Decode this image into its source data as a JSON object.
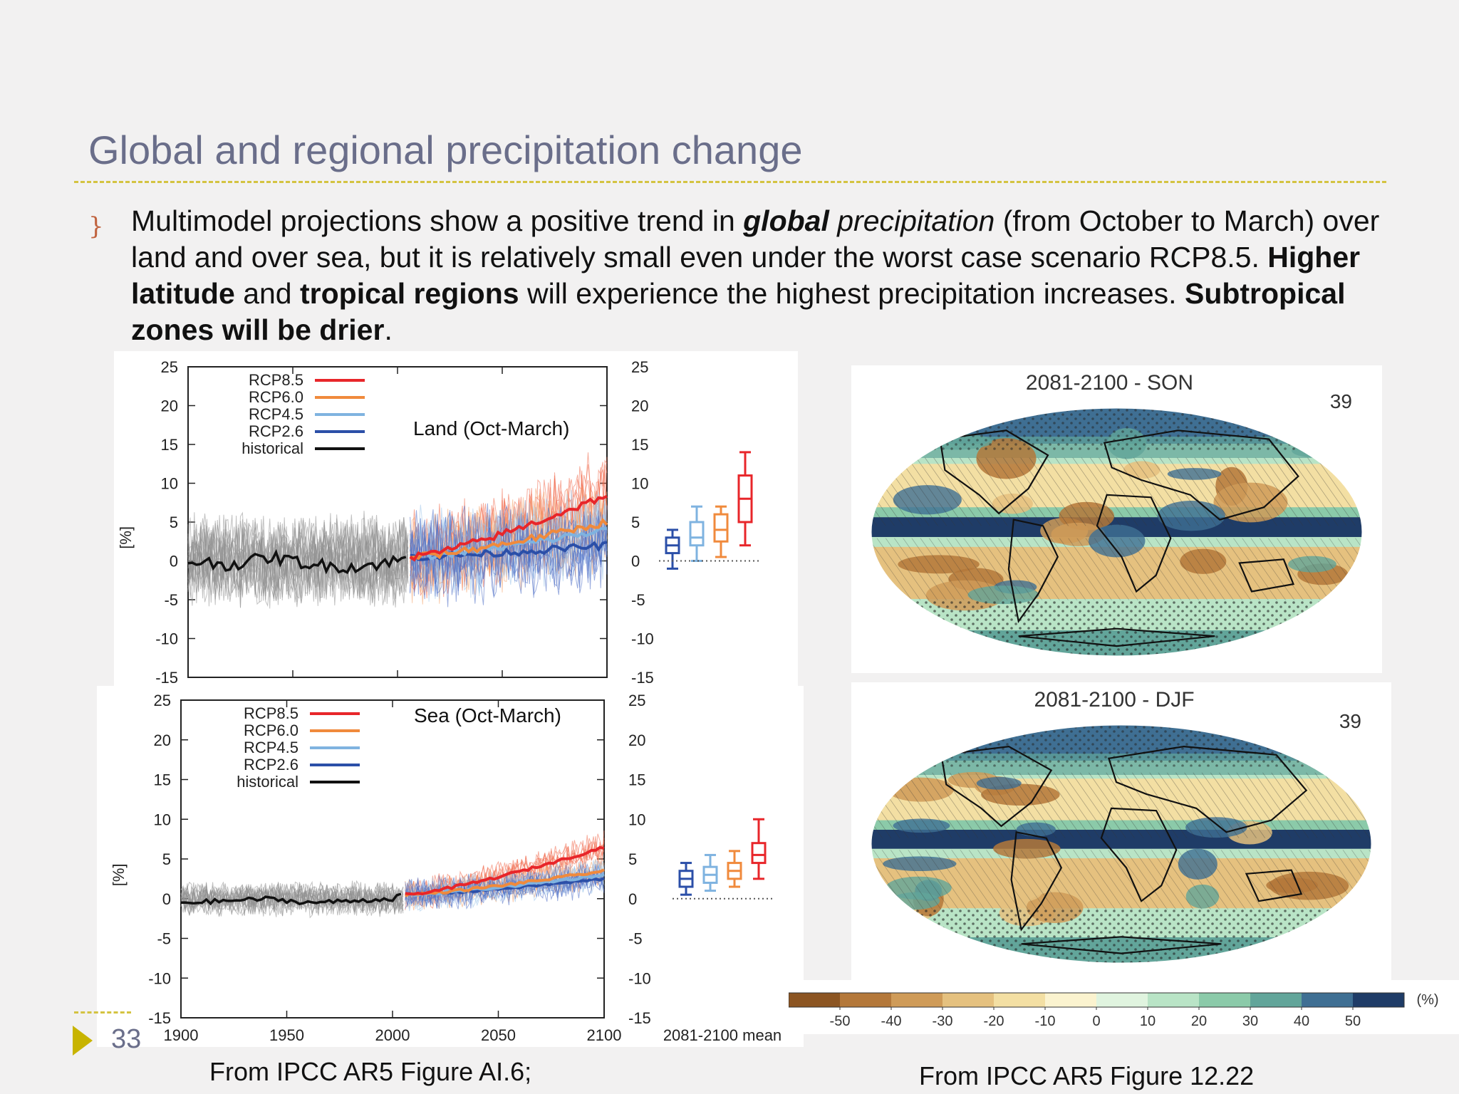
{
  "slide": {
    "title": "Global and regional precipitation change",
    "page_number": "33"
  },
  "bullet": {
    "t1": "Multimodel projections show a positive trend in ",
    "t2": "global",
    "t3": " precipitation",
    "t4": " (from October to March) over land and over sea, but it is relatively small even under the worst case scenario RCP8.5. ",
    "t5": "Higher latitude",
    "t6": " and ",
    "t7": "tropical regions",
    "t8": " will experience the highest precipitation increases. ",
    "t9": "Subtropical zones will be drier",
    "t10": "."
  },
  "captions": {
    "left": "From IPCC AR5 Figure AI.6;",
    "right": "From IPCC AR5 Figure 12.22"
  },
  "colors": {
    "RCP8.5": "#e8262a",
    "RCP6.0": "#f08a3c",
    "RCP4.5": "#7fb3e0",
    "RCP2.6": "#2b4fa8",
    "historical": "#111111"
  },
  "chart_data": [
    {
      "type": "line",
      "annotation": "Land (Oct-March)",
      "ylabel": "[%]",
      "ylim": [
        -15,
        25
      ],
      "yticks": [
        "25",
        "20",
        "15",
        "10",
        "5",
        "0",
        "-5",
        "-10",
        "-15"
      ],
      "xlim": [
        1900,
        2100
      ],
      "legend": [
        "RCP8.5",
        "RCP6.0",
        "RCP4.5",
        "RCP2.6",
        "historical"
      ],
      "legend_position": "top-left",
      "series": [
        {
          "name": "historical",
          "x": [
            1900,
            1920,
            1940,
            1960,
            1980,
            2000,
            2005
          ],
          "y": [
            0,
            -0.5,
            0.5,
            -0.5,
            -0.8,
            0,
            0.5
          ]
        },
        {
          "name": "RCP2.6",
          "x": [
            2006,
            2050,
            2100
          ],
          "y": [
            0.5,
            1.5,
            2
          ]
        },
        {
          "name": "RCP4.5",
          "x": [
            2006,
            2050,
            2100
          ],
          "y": [
            0.5,
            2.5,
            4
          ]
        },
        {
          "name": "RCP6.0",
          "x": [
            2006,
            2050,
            2100
          ],
          "y": [
            0.5,
            2,
            5
          ]
        },
        {
          "name": "RCP8.5",
          "x": [
            2006,
            2050,
            2100
          ],
          "y": [
            0.5,
            3.5,
            8.5
          ]
        }
      ],
      "boxplot_2081_2100_mean": [
        {
          "name": "RCP2.6",
          "min": -1,
          "q1": 1,
          "median": 2,
          "q3": 3,
          "max": 4
        },
        {
          "name": "RCP4.5",
          "min": 0,
          "q1": 2,
          "median": 3,
          "q3": 5,
          "max": 7
        },
        {
          "name": "RCP6.0",
          "min": 0.5,
          "q1": 2.5,
          "median": 4,
          "q3": 6,
          "max": 7
        },
        {
          "name": "RCP8.5",
          "min": 2,
          "q1": 5,
          "median": 8,
          "q3": 11,
          "max": 14
        }
      ]
    },
    {
      "type": "line",
      "annotation": "Sea (Oct-March)",
      "ylabel": "[%]",
      "ylim": [
        -15,
        25
      ],
      "yticks": [
        "25",
        "20",
        "15",
        "10",
        "5",
        "0",
        "-5",
        "-10",
        "-15"
      ],
      "xlim": [
        1900,
        2100
      ],
      "xticks": [
        "1900",
        "1950",
        "2000",
        "2050",
        "2100"
      ],
      "xextra": "2081-2100 mean",
      "legend": [
        "RCP8.5",
        "RCP6.0",
        "RCP4.5",
        "RCP2.6",
        "historical"
      ],
      "legend_position": "top-left",
      "series": [
        {
          "name": "historical",
          "x": [
            1900,
            1920,
            1940,
            1960,
            1980,
            2000,
            2005
          ],
          "y": [
            -0.5,
            -0.3,
            0,
            -0.5,
            -0.3,
            0,
            0.5
          ]
        },
        {
          "name": "RCP2.6",
          "x": [
            2006,
            2050,
            2100
          ],
          "y": [
            0.5,
            2,
            2.5
          ]
        },
        {
          "name": "RCP4.5",
          "x": [
            2006,
            2050,
            2100
          ],
          "y": [
            0.5,
            2,
            3
          ]
        },
        {
          "name": "RCP6.0",
          "x": [
            2006,
            2050,
            2100
          ],
          "y": [
            0.5,
            2,
            3.5
          ]
        },
        {
          "name": "RCP8.5",
          "x": [
            2006,
            2050,
            2100
          ],
          "y": [
            0.5,
            3,
            6.5
          ]
        }
      ],
      "boxplot_2081_2100_mean": [
        {
          "name": "RCP2.6",
          "min": 0.5,
          "q1": 1.5,
          "median": 2.5,
          "q3": 3.5,
          "max": 4.5
        },
        {
          "name": "RCP4.5",
          "min": 1,
          "q1": 2,
          "median": 3,
          "q3": 4,
          "max": 5.5
        },
        {
          "name": "RCP6.0",
          "min": 1.5,
          "q1": 2.5,
          "median": 3.5,
          "q3": 4.5,
          "max": 6
        },
        {
          "name": "RCP8.5",
          "min": 2.5,
          "q1": 4.5,
          "median": 5.5,
          "q3": 7,
          "max": 10
        }
      ]
    },
    {
      "type": "heatmap",
      "title": "2081-2100 - SON",
      "model_count": "39"
    },
    {
      "type": "heatmap",
      "title": "2081-2100 - DJF",
      "model_count": "39"
    }
  ],
  "colorbar": {
    "ticks": [
      "-50",
      "-40",
      "-30",
      "-20",
      "-10",
      "0",
      "10",
      "20",
      "30",
      "40",
      "50"
    ],
    "unit": "(%)",
    "colors": [
      "#8c5522",
      "#b4783a",
      "#cf9b58",
      "#e5c17f",
      "#f3dfa3",
      "#fbf3cf",
      "#e0f4df",
      "#b9e4c6",
      "#8bcaa9",
      "#62a59a",
      "#3f6f93",
      "#1f3c67"
    ]
  }
}
